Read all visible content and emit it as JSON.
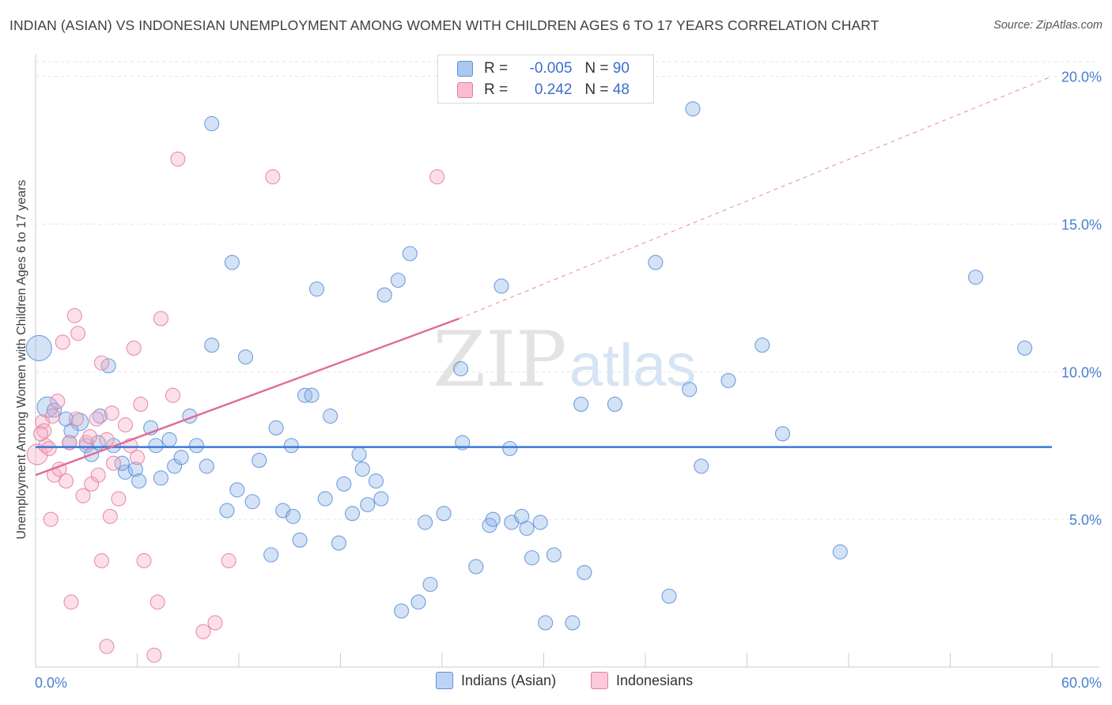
{
  "title": "INDIAN (ASIAN) VS INDONESIAN UNEMPLOYMENT AMONG WOMEN WITH CHILDREN AGES 6 TO 17 YEARS CORRELATION CHART",
  "source": "Source: ZipAtlas.com",
  "watermark": {
    "zip": "ZIP",
    "atlas": "atlas"
  },
  "legend": {
    "rows": [
      {
        "r_label": "R =",
        "r_value": "-0.005",
        "n_label": "N =",
        "n_value": "90",
        "color": "#aac8f0",
        "border": "#5b8fd9"
      },
      {
        "r_label": "R =",
        "r_value": "0.242",
        "n_label": "N =",
        "n_value": "48",
        "color": "#f9bcd0",
        "border": "#e07fa2"
      }
    ]
  },
  "bottom_legend": [
    {
      "label": "Indians (Asian)",
      "color": "#bcd4f4",
      "border": "#5b8fd9"
    },
    {
      "label": "Indonesians",
      "color": "#fbc9d9",
      "border": "#e07fa2"
    }
  ],
  "chart_data": {
    "type": "scatter",
    "title": "INDIAN (ASIAN) VS INDONESIAN UNEMPLOYMENT AMONG WOMEN WITH CHILDREN AGES 6 TO 17 YEARS CORRELATION CHART",
    "xlabel": "",
    "ylabel": "Unemployment Among Women with Children Ages 6 to 17 years",
    "xlim": [
      0,
      60
    ],
    "ylim": [
      0,
      20.5
    ],
    "x_tick_labels": [
      "0.0%",
      "60.0%"
    ],
    "y_ticks": [
      5,
      10,
      15,
      20
    ],
    "y_tick_labels": [
      "5.0%",
      "10.0%",
      "15.0%",
      "20.0%"
    ],
    "grid": true,
    "series": [
      {
        "name": "Indians (Asian)",
        "color": "#8fb4e8",
        "stroke": "#5b8fd9",
        "trend": {
          "x0": 0,
          "y0": 7.45,
          "x1": 60,
          "y1": 7.45,
          "color": "#3a78d8"
        },
        "points": [
          [
            0.2,
            10.8,
            16
          ],
          [
            0.7,
            8.8,
            13
          ],
          [
            1.8,
            8.4,
            9
          ],
          [
            2.6,
            8.3,
            11
          ],
          [
            2.1,
            8.0,
            9
          ],
          [
            1.1,
            8.7,
            9
          ],
          [
            3.0,
            7.5,
            9
          ],
          [
            3.3,
            7.2,
            9
          ],
          [
            3.8,
            8.5,
            9
          ],
          [
            4.6,
            7.5,
            9
          ],
          [
            3.7,
            7.6,
            9
          ],
          [
            4.3,
            10.2,
            9
          ],
          [
            5.3,
            6.6,
            9
          ],
          [
            5.9,
            6.7,
            9
          ],
          [
            6.1,
            6.3,
            9
          ],
          [
            5.1,
            6.9,
            9
          ],
          [
            6.8,
            8.1,
            9
          ],
          [
            7.1,
            7.5,
            9
          ],
          [
            7.4,
            6.4,
            9
          ],
          [
            7.9,
            7.7,
            9
          ],
          [
            8.2,
            6.8,
            9
          ],
          [
            8.6,
            7.1,
            9
          ],
          [
            9.1,
            8.5,
            9
          ],
          [
            9.5,
            7.5,
            9
          ],
          [
            10.1,
            6.8,
            9
          ],
          [
            10.4,
            10.9,
            9
          ],
          [
            10.4,
            18.4,
            9
          ],
          [
            11.3,
            5.3,
            9
          ],
          [
            11.6,
            13.7,
            9
          ],
          [
            11.9,
            6.0,
            9
          ],
          [
            12.4,
            10.5,
            9
          ],
          [
            12.8,
            5.6,
            9
          ],
          [
            13.2,
            7.0,
            9
          ],
          [
            13.9,
            3.8,
            9
          ],
          [
            14.2,
            8.1,
            9
          ],
          [
            14.6,
            5.3,
            9
          ],
          [
            15.2,
            5.1,
            9
          ],
          [
            15.1,
            7.5,
            9
          ],
          [
            15.6,
            4.3,
            9
          ],
          [
            15.9,
            9.2,
            9
          ],
          [
            16.3,
            9.2,
            9
          ],
          [
            16.6,
            12.8,
            9
          ],
          [
            17.1,
            5.7,
            9
          ],
          [
            17.4,
            8.5,
            9
          ],
          [
            17.9,
            4.2,
            9
          ],
          [
            18.2,
            6.2,
            9
          ],
          [
            18.7,
            5.2,
            9
          ],
          [
            19.1,
            7.2,
            9
          ],
          [
            19.3,
            6.7,
            9
          ],
          [
            19.6,
            5.5,
            9
          ],
          [
            20.1,
            6.3,
            9
          ],
          [
            20.4,
            5.7,
            9
          ],
          [
            20.6,
            12.6,
            9
          ],
          [
            21.4,
            13.1,
            9
          ],
          [
            21.6,
            1.9,
            9
          ],
          [
            22.1,
            14.0,
            9
          ],
          [
            22.6,
            2.2,
            9
          ],
          [
            23.0,
            4.9,
            9
          ],
          [
            23.3,
            2.8,
            9
          ],
          [
            24.1,
            5.2,
            9
          ],
          [
            25.1,
            10.1,
            9
          ],
          [
            25.2,
            7.6,
            9
          ],
          [
            26.0,
            3.4,
            9
          ],
          [
            26.8,
            4.8,
            9
          ],
          [
            27.0,
            5.0,
            9
          ],
          [
            27.5,
            12.9,
            9
          ],
          [
            28.1,
            4.9,
            9
          ],
          [
            28.0,
            7.4,
            9
          ],
          [
            28.7,
            5.1,
            9
          ],
          [
            29.0,
            4.7,
            9
          ],
          [
            29.3,
            3.7,
            9
          ],
          [
            29.8,
            4.9,
            9
          ],
          [
            30.1,
            1.5,
            9
          ],
          [
            30.6,
            3.8,
            9
          ],
          [
            31.7,
            1.5,
            9
          ],
          [
            32.2,
            8.9,
            9
          ],
          [
            32.4,
            3.2,
            9
          ],
          [
            34.2,
            8.9,
            9
          ],
          [
            36.6,
            13.7,
            9
          ],
          [
            37.4,
            2.4,
            9
          ],
          [
            38.6,
            9.4,
            9
          ],
          [
            38.8,
            18.9,
            9
          ],
          [
            39.3,
            6.8,
            9
          ],
          [
            40.9,
            9.7,
            9
          ],
          [
            42.9,
            10.9,
            9
          ],
          [
            44.1,
            7.9,
            9
          ],
          [
            47.5,
            3.9,
            9
          ],
          [
            55.5,
            13.2,
            9
          ],
          [
            58.4,
            10.8,
            9
          ],
          [
            2.0,
            7.6,
            9
          ]
        ]
      },
      {
        "name": "Indonesians",
        "color": "#f6aac3",
        "stroke": "#e07fa2",
        "trend": {
          "x0": 0,
          "y0": 6.5,
          "x1": 25,
          "y1": 11.8,
          "dash_x1": 60,
          "dash_y1": 20.0,
          "color": "#e26a94"
        },
        "points": [
          [
            0.1,
            7.2,
            13
          ],
          [
            0.4,
            8.3,
            9
          ],
          [
            0.5,
            8.0,
            9
          ],
          [
            0.6,
            7.5,
            9
          ],
          [
            0.8,
            7.4,
            9
          ],
          [
            0.9,
            5.0,
            9
          ],
          [
            1.1,
            6.5,
            9
          ],
          [
            1.3,
            9.0,
            9
          ],
          [
            1.4,
            6.7,
            9
          ],
          [
            1.6,
            11.0,
            9
          ],
          [
            1.8,
            6.3,
            9
          ],
          [
            2.0,
            7.6,
            9
          ],
          [
            2.1,
            2.2,
            9
          ],
          [
            2.3,
            11.9,
            9
          ],
          [
            2.4,
            8.4,
            9
          ],
          [
            2.5,
            11.3,
            9
          ],
          [
            2.8,
            5.8,
            9
          ],
          [
            3.0,
            7.6,
            9
          ],
          [
            3.2,
            7.8,
            9
          ],
          [
            3.3,
            6.2,
            9
          ],
          [
            3.6,
            8.4,
            9
          ],
          [
            3.7,
            6.5,
            9
          ],
          [
            3.9,
            3.6,
            9
          ],
          [
            3.9,
            10.3,
            9
          ],
          [
            4.2,
            7.7,
            9
          ],
          [
            4.2,
            0.7,
            9
          ],
          [
            4.4,
            5.1,
            9
          ],
          [
            4.5,
            8.6,
            9
          ],
          [
            4.6,
            6.9,
            9
          ],
          [
            4.9,
            5.7,
            9
          ],
          [
            5.3,
            8.2,
            9
          ],
          [
            5.6,
            7.5,
            9
          ],
          [
            5.8,
            10.8,
            9
          ],
          [
            6.0,
            7.1,
            9
          ],
          [
            6.2,
            8.9,
            9
          ],
          [
            6.4,
            3.6,
            9
          ],
          [
            7.0,
            0.4,
            9
          ],
          [
            7.2,
            2.2,
            9
          ],
          [
            7.4,
            11.8,
            9
          ],
          [
            8.1,
            9.2,
            9
          ],
          [
            8.4,
            17.2,
            9
          ],
          [
            9.9,
            1.2,
            9
          ],
          [
            10.6,
            1.5,
            9
          ],
          [
            11.4,
            3.6,
            9
          ],
          [
            14.0,
            16.6,
            9
          ],
          [
            23.7,
            16.6,
            9
          ],
          [
            1.0,
            8.5,
            9
          ],
          [
            0.3,
            7.9,
            9
          ]
        ]
      }
    ]
  }
}
